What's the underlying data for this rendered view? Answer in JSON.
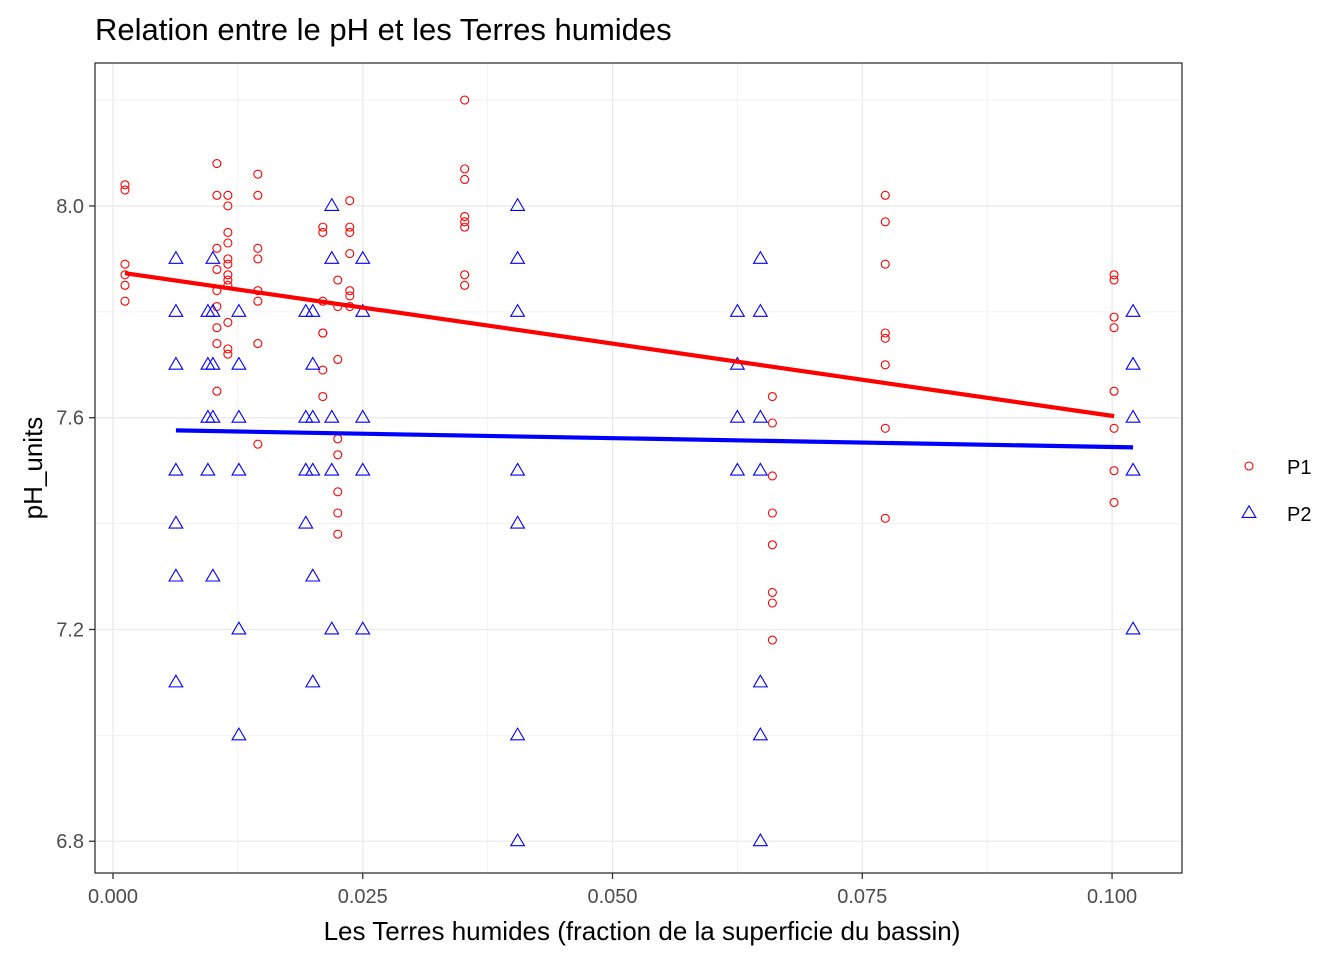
{
  "chart_data": {
    "type": "scatter",
    "title": "Relation entre le pH et les Terres humides",
    "xlabel": "Les Terres humides (fraction de la superficie du bassin)",
    "ylabel": "pH_units",
    "xlim": [
      -0.0018,
      0.107
    ],
    "ylim": [
      6.74,
      8.27
    ],
    "xticks": [
      0.0,
      0.025,
      0.05,
      0.075,
      0.1
    ],
    "xtick_labels": [
      "0.000",
      "0.025",
      "0.050",
      "0.075",
      "0.100"
    ],
    "yticks": [
      6.8,
      7.2,
      7.6,
      8.0
    ],
    "ytick_labels": [
      "6.8",
      "7.2",
      "7.6",
      "8.0"
    ],
    "grid": true,
    "legend_position": "right",
    "series": [
      {
        "name": "P1",
        "color": "#ff0000",
        "marker": "circle",
        "points": [
          [
            0.0012,
            8.04
          ],
          [
            0.0012,
            8.03
          ],
          [
            0.0012,
            7.89
          ],
          [
            0.0012,
            7.87
          ],
          [
            0.0012,
            7.85
          ],
          [
            0.0012,
            7.82
          ],
          [
            0.0104,
            8.08
          ],
          [
            0.0104,
            8.02
          ],
          [
            0.0104,
            7.92
          ],
          [
            0.0104,
            7.88
          ],
          [
            0.0104,
            7.84
          ],
          [
            0.0104,
            7.81
          ],
          [
            0.0104,
            7.77
          ],
          [
            0.0104,
            7.74
          ],
          [
            0.0104,
            7.65
          ],
          [
            0.0115,
            8.02
          ],
          [
            0.0115,
            8.0
          ],
          [
            0.0115,
            7.95
          ],
          [
            0.0115,
            7.93
          ],
          [
            0.0115,
            7.9
          ],
          [
            0.0115,
            7.89
          ],
          [
            0.0115,
            7.87
          ],
          [
            0.0115,
            7.86
          ],
          [
            0.0115,
            7.85
          ],
          [
            0.0115,
            7.78
          ],
          [
            0.0115,
            7.73
          ],
          [
            0.0115,
            7.72
          ],
          [
            0.0145,
            8.06
          ],
          [
            0.0145,
            8.02
          ],
          [
            0.0145,
            7.92
          ],
          [
            0.0145,
            7.9
          ],
          [
            0.0145,
            7.84
          ],
          [
            0.0145,
            7.82
          ],
          [
            0.0145,
            7.74
          ],
          [
            0.0145,
            7.55
          ],
          [
            0.021,
            7.96
          ],
          [
            0.021,
            7.95
          ],
          [
            0.021,
            7.82
          ],
          [
            0.021,
            7.76
          ],
          [
            0.021,
            7.76
          ],
          [
            0.021,
            7.69
          ],
          [
            0.021,
            7.64
          ],
          [
            0.0225,
            7.86
          ],
          [
            0.0225,
            7.81
          ],
          [
            0.0225,
            7.71
          ],
          [
            0.0225,
            7.56
          ],
          [
            0.0225,
            7.53
          ],
          [
            0.0225,
            7.46
          ],
          [
            0.0225,
            7.42
          ],
          [
            0.0225,
            7.38
          ],
          [
            0.0237,
            8.01
          ],
          [
            0.0237,
            7.96
          ],
          [
            0.0237,
            7.95
          ],
          [
            0.0237,
            7.91
          ],
          [
            0.0237,
            7.84
          ],
          [
            0.0237,
            7.83
          ],
          [
            0.0237,
            7.81
          ],
          [
            0.0352,
            8.2
          ],
          [
            0.0352,
            8.07
          ],
          [
            0.0352,
            8.05
          ],
          [
            0.0352,
            7.98
          ],
          [
            0.0352,
            7.97
          ],
          [
            0.0352,
            7.96
          ],
          [
            0.0352,
            7.87
          ],
          [
            0.0352,
            7.85
          ],
          [
            0.066,
            7.64
          ],
          [
            0.066,
            7.59
          ],
          [
            0.066,
            7.49
          ],
          [
            0.066,
            7.42
          ],
          [
            0.066,
            7.36
          ],
          [
            0.066,
            7.27
          ],
          [
            0.066,
            7.25
          ],
          [
            0.066,
            7.18
          ],
          [
            0.0773,
            8.02
          ],
          [
            0.0773,
            7.97
          ],
          [
            0.0773,
            7.89
          ],
          [
            0.0773,
            7.76
          ],
          [
            0.0773,
            7.75
          ],
          [
            0.0773,
            7.7
          ],
          [
            0.0773,
            7.58
          ],
          [
            0.0773,
            7.41
          ],
          [
            0.1002,
            7.87
          ],
          [
            0.1002,
            7.86
          ],
          [
            0.1002,
            7.79
          ],
          [
            0.1002,
            7.77
          ],
          [
            0.1002,
            7.65
          ],
          [
            0.1002,
            7.58
          ],
          [
            0.1002,
            7.5
          ],
          [
            0.1002,
            7.44
          ]
        ],
        "fit": [
          [
            0.0012,
            7.873
          ],
          [
            0.1002,
            7.603
          ]
        ]
      },
      {
        "name": "P2",
        "color": "#0000ff",
        "marker": "triangle",
        "points": [
          [
            0.0063,
            7.9
          ],
          [
            0.0063,
            7.8
          ],
          [
            0.0063,
            7.7
          ],
          [
            0.0063,
            7.5
          ],
          [
            0.0063,
            7.4
          ],
          [
            0.0063,
            7.3
          ],
          [
            0.0063,
            7.1
          ],
          [
            0.0095,
            7.8
          ],
          [
            0.0095,
            7.7
          ],
          [
            0.0095,
            7.6
          ],
          [
            0.0095,
            7.5
          ],
          [
            0.01,
            7.9
          ],
          [
            0.01,
            7.8
          ],
          [
            0.01,
            7.7
          ],
          [
            0.01,
            7.6
          ],
          [
            0.01,
            7.3
          ],
          [
            0.0126,
            7.8
          ],
          [
            0.0126,
            7.7
          ],
          [
            0.0126,
            7.6
          ],
          [
            0.0126,
            7.5
          ],
          [
            0.0126,
            7.2
          ],
          [
            0.0126,
            7.0
          ],
          [
            0.0193,
            7.8
          ],
          [
            0.0193,
            7.6
          ],
          [
            0.0193,
            7.5
          ],
          [
            0.0193,
            7.4
          ],
          [
            0.02,
            7.8
          ],
          [
            0.02,
            7.7
          ],
          [
            0.02,
            7.6
          ],
          [
            0.02,
            7.5
          ],
          [
            0.02,
            7.3
          ],
          [
            0.02,
            7.1
          ],
          [
            0.0219,
            8.0
          ],
          [
            0.0219,
            7.9
          ],
          [
            0.0219,
            7.6
          ],
          [
            0.0219,
            7.5
          ],
          [
            0.0219,
            7.2
          ],
          [
            0.025,
            7.9
          ],
          [
            0.025,
            7.8
          ],
          [
            0.025,
            7.6
          ],
          [
            0.025,
            7.5
          ],
          [
            0.025,
            7.2
          ],
          [
            0.0405,
            8.0
          ],
          [
            0.0405,
            7.9
          ],
          [
            0.0405,
            7.8
          ],
          [
            0.0405,
            7.5
          ],
          [
            0.0405,
            7.4
          ],
          [
            0.0405,
            7.0
          ],
          [
            0.0405,
            6.8
          ],
          [
            0.0625,
            7.8
          ],
          [
            0.0625,
            7.7
          ],
          [
            0.0625,
            7.6
          ],
          [
            0.0625,
            7.5
          ],
          [
            0.0648,
            7.9
          ],
          [
            0.0648,
            7.8
          ],
          [
            0.0648,
            7.6
          ],
          [
            0.0648,
            7.5
          ],
          [
            0.0648,
            7.1
          ],
          [
            0.0648,
            7.0
          ],
          [
            0.0648,
            6.8
          ],
          [
            0.1021,
            7.8
          ],
          [
            0.1021,
            7.7
          ],
          [
            0.1021,
            7.6
          ],
          [
            0.1021,
            7.5
          ],
          [
            0.1021,
            7.2
          ]
        ],
        "fit": [
          [
            0.0063,
            7.576
          ],
          [
            0.1021,
            7.544
          ]
        ]
      }
    ]
  }
}
